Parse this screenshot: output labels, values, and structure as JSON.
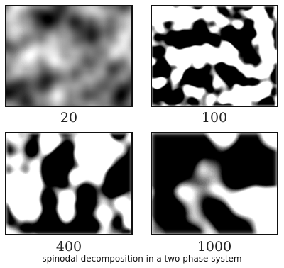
{
  "figure": {
    "panels": [
      {
        "id": "p20",
        "label": "20"
      },
      {
        "id": "p100",
        "label": "100"
      },
      {
        "id": "p400",
        "label": "400"
      },
      {
        "id": "p1000",
        "label": "1000"
      }
    ],
    "caption": "spinodal decomposition in a two phase system"
  },
  "colors": {
    "phase_dark": "#0b0b0b",
    "phase_light": "#ffffff",
    "early_mid_gray": "#8a8a8a"
  }
}
